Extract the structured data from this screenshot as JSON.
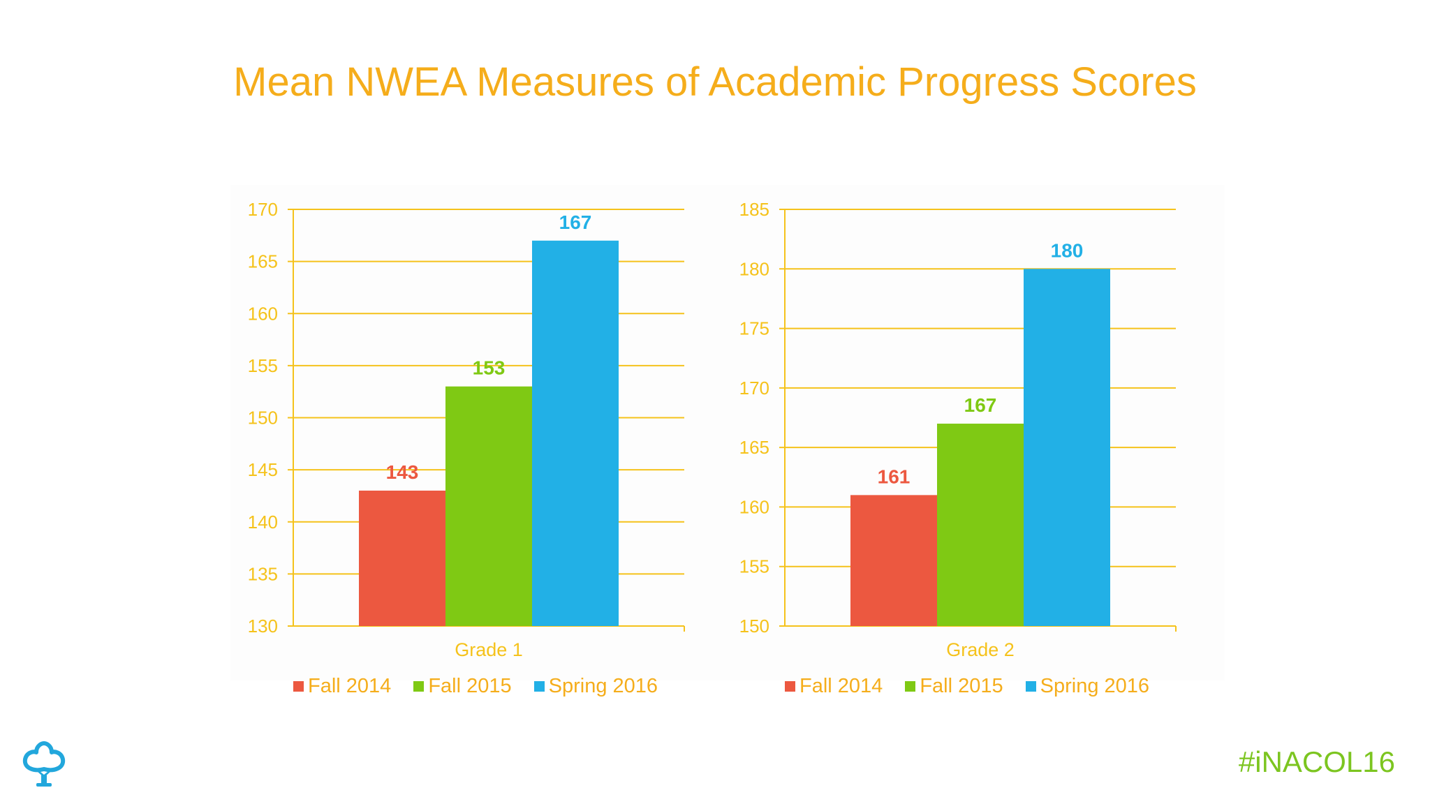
{
  "title": "Mean NWEA Measures of Academic Progress Scores",
  "hashtag": "#iNACOL16",
  "logo_icon": "tree-logo-icon",
  "colors": {
    "title": "#f5ad1b",
    "axis": "#f5c21b",
    "hashtag": "#7cc520",
    "series": [
      "#ec5840",
      "#7fc914",
      "#22b0e6"
    ]
  },
  "chart_data": [
    {
      "type": "bar",
      "categories": [
        "Grade 1"
      ],
      "series": [
        {
          "name": "Fall 2014",
          "values": [
            143
          ]
        },
        {
          "name": "Fall 2015",
          "values": [
            153
          ]
        },
        {
          "name": "Spring 2016",
          "values": [
            167
          ]
        }
      ],
      "ylim": [
        130,
        170
      ],
      "yticks": [
        130,
        135,
        140,
        145,
        150,
        155,
        160,
        165,
        170
      ],
      "grid": true,
      "legend": "bottom",
      "data_labels": true
    },
    {
      "type": "bar",
      "categories": [
        "Grade 2"
      ],
      "series": [
        {
          "name": "Fall 2014",
          "values": [
            161
          ]
        },
        {
          "name": "Fall 2015",
          "values": [
            167
          ]
        },
        {
          "name": "Spring 2016",
          "values": [
            180
          ]
        }
      ],
      "ylim": [
        150,
        185
      ],
      "yticks": [
        150,
        155,
        160,
        165,
        170,
        175,
        180,
        185
      ],
      "grid": true,
      "legend": "bottom",
      "data_labels": true
    }
  ]
}
